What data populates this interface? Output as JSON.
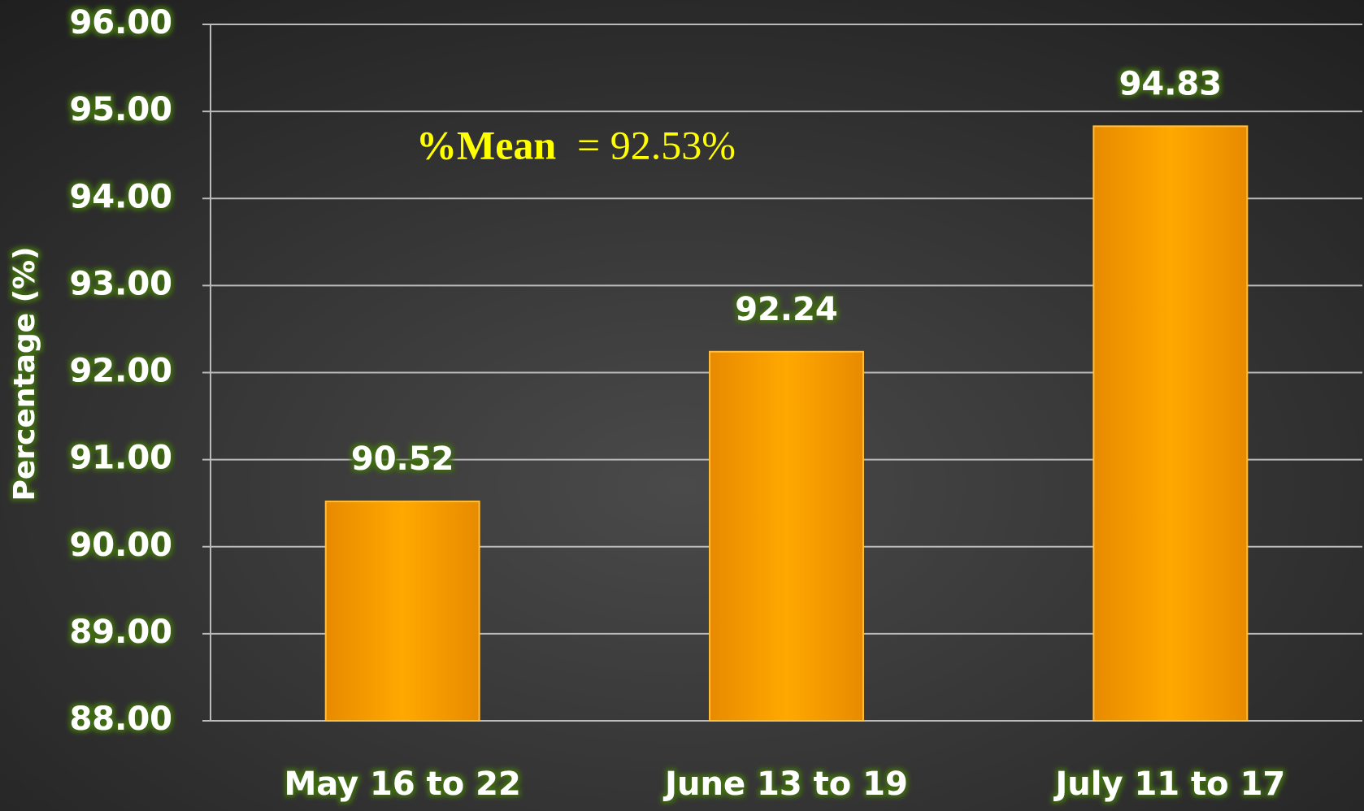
{
  "chart_data": {
    "type": "bar",
    "y_label": "Percentage (%)",
    "annotation_label": "%Mean",
    "annotation_text": "= 92.53%",
    "categories": [
      "May 16 to 22",
      "June 13 to 19",
      "July 11 to 17"
    ],
    "values": [
      90.52,
      92.24,
      94.83
    ],
    "color": "#ffa200",
    "ylim": [
      88,
      96
    ],
    "yticks": [
      {
        "value": 88,
        "label": "88.00"
      },
      {
        "value": 89,
        "label": "89.00"
      },
      {
        "value": 90,
        "label": "90.00"
      },
      {
        "value": 91,
        "label": "91.00"
      },
      {
        "value": 92,
        "label": "92.00"
      },
      {
        "value": 93,
        "label": "93.00"
      },
      {
        "value": 94,
        "label": "94.00"
      },
      {
        "value": 95,
        "label": "95.00"
      },
      {
        "value": 96,
        "label": "96.00"
      }
    ],
    "grid": true
  }
}
